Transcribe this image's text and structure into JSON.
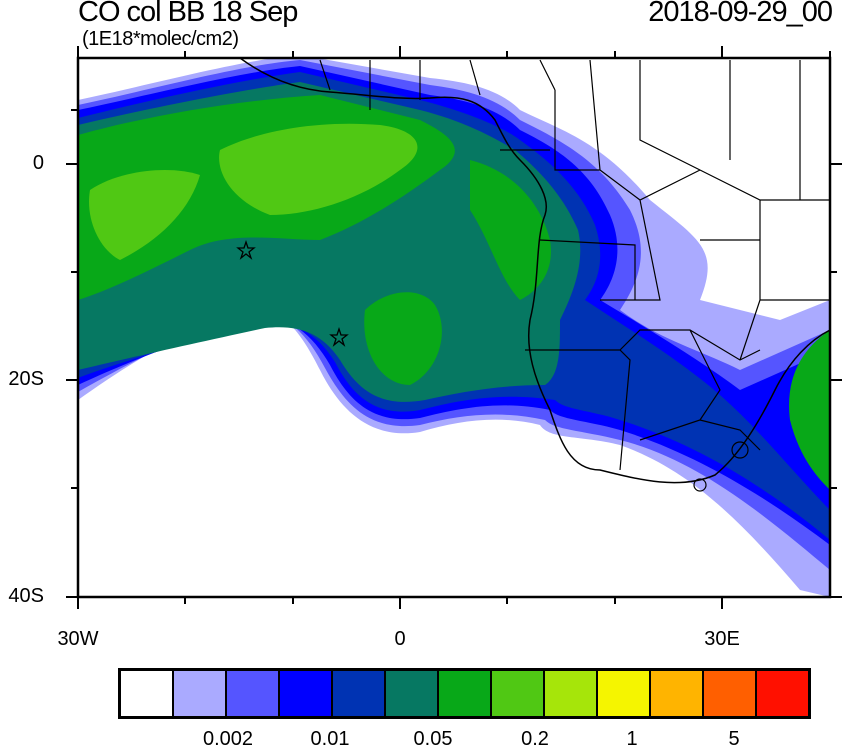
{
  "title": "CO col BB 18 Sep",
  "units": "(1E18*molec/cm2)",
  "date": "2018-09-29_00",
  "axes": {
    "lat_labels": [
      "0",
      "20S",
      "40S"
    ],
    "lon_labels": [
      "30W",
      "0",
      "30E"
    ]
  },
  "colorbar": {
    "colors": [
      "#ffffff",
      "#aaaaff",
      "#5555ff",
      "#0000ff",
      "#0033b3",
      "#067862",
      "#08a818",
      "#50c814",
      "#a6e50a",
      "#f5f500",
      "#ffb400",
      "#ff5f00",
      "#ff1000"
    ],
    "labels": [
      "0.002",
      "0.01",
      "0.05",
      "0.2",
      "1",
      "5"
    ]
  },
  "markers": [
    {
      "name": "star-1",
      "lon": -14.5,
      "lat": -8
    },
    {
      "name": "star-2",
      "lon": -5.7,
      "lat": -16
    }
  ]
}
